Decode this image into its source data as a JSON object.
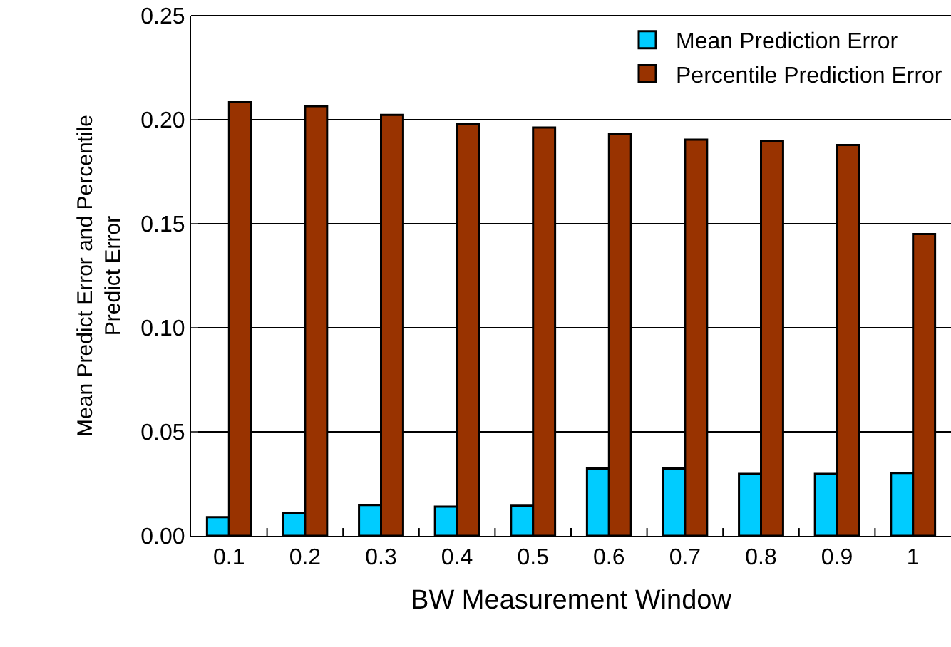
{
  "chart_data": {
    "type": "bar",
    "xlabel": "BW Measurement Window",
    "ylabel": "Mean Predict Error and Percentile Predict Error",
    "categories": [
      "0.1",
      "0.2",
      "0.3",
      "0.4",
      "0.5",
      "0.6",
      "0.7",
      "0.8",
      "0.9",
      "1"
    ],
    "series": [
      {
        "name": "Mean Prediction Error",
        "color": "#00ccff",
        "values": [
          0.009,
          0.011,
          0.0148,
          0.014,
          0.0145,
          0.0324,
          0.0324,
          0.0298,
          0.0298,
          0.0302
        ]
      },
      {
        "name": "Percentile Prediction Error",
        "color": "#993300",
        "values": [
          0.2084,
          0.2065,
          0.2023,
          0.198,
          0.1962,
          0.1932,
          0.1904,
          0.1899,
          0.1878,
          0.145
        ]
      }
    ],
    "ylim": [
      0,
      0.25
    ],
    "yticks": [
      {
        "value": 0,
        "label": "0.00"
      },
      {
        "value": 0.05,
        "label": "0.05"
      },
      {
        "value": 0.1,
        "label": "0.10"
      },
      {
        "value": 0.15,
        "label": "0.15"
      },
      {
        "value": 0.2,
        "label": "0.20"
      },
      {
        "value": 0.25,
        "label": "0.25"
      }
    ],
    "grid": "y",
    "legend": "top right"
  }
}
